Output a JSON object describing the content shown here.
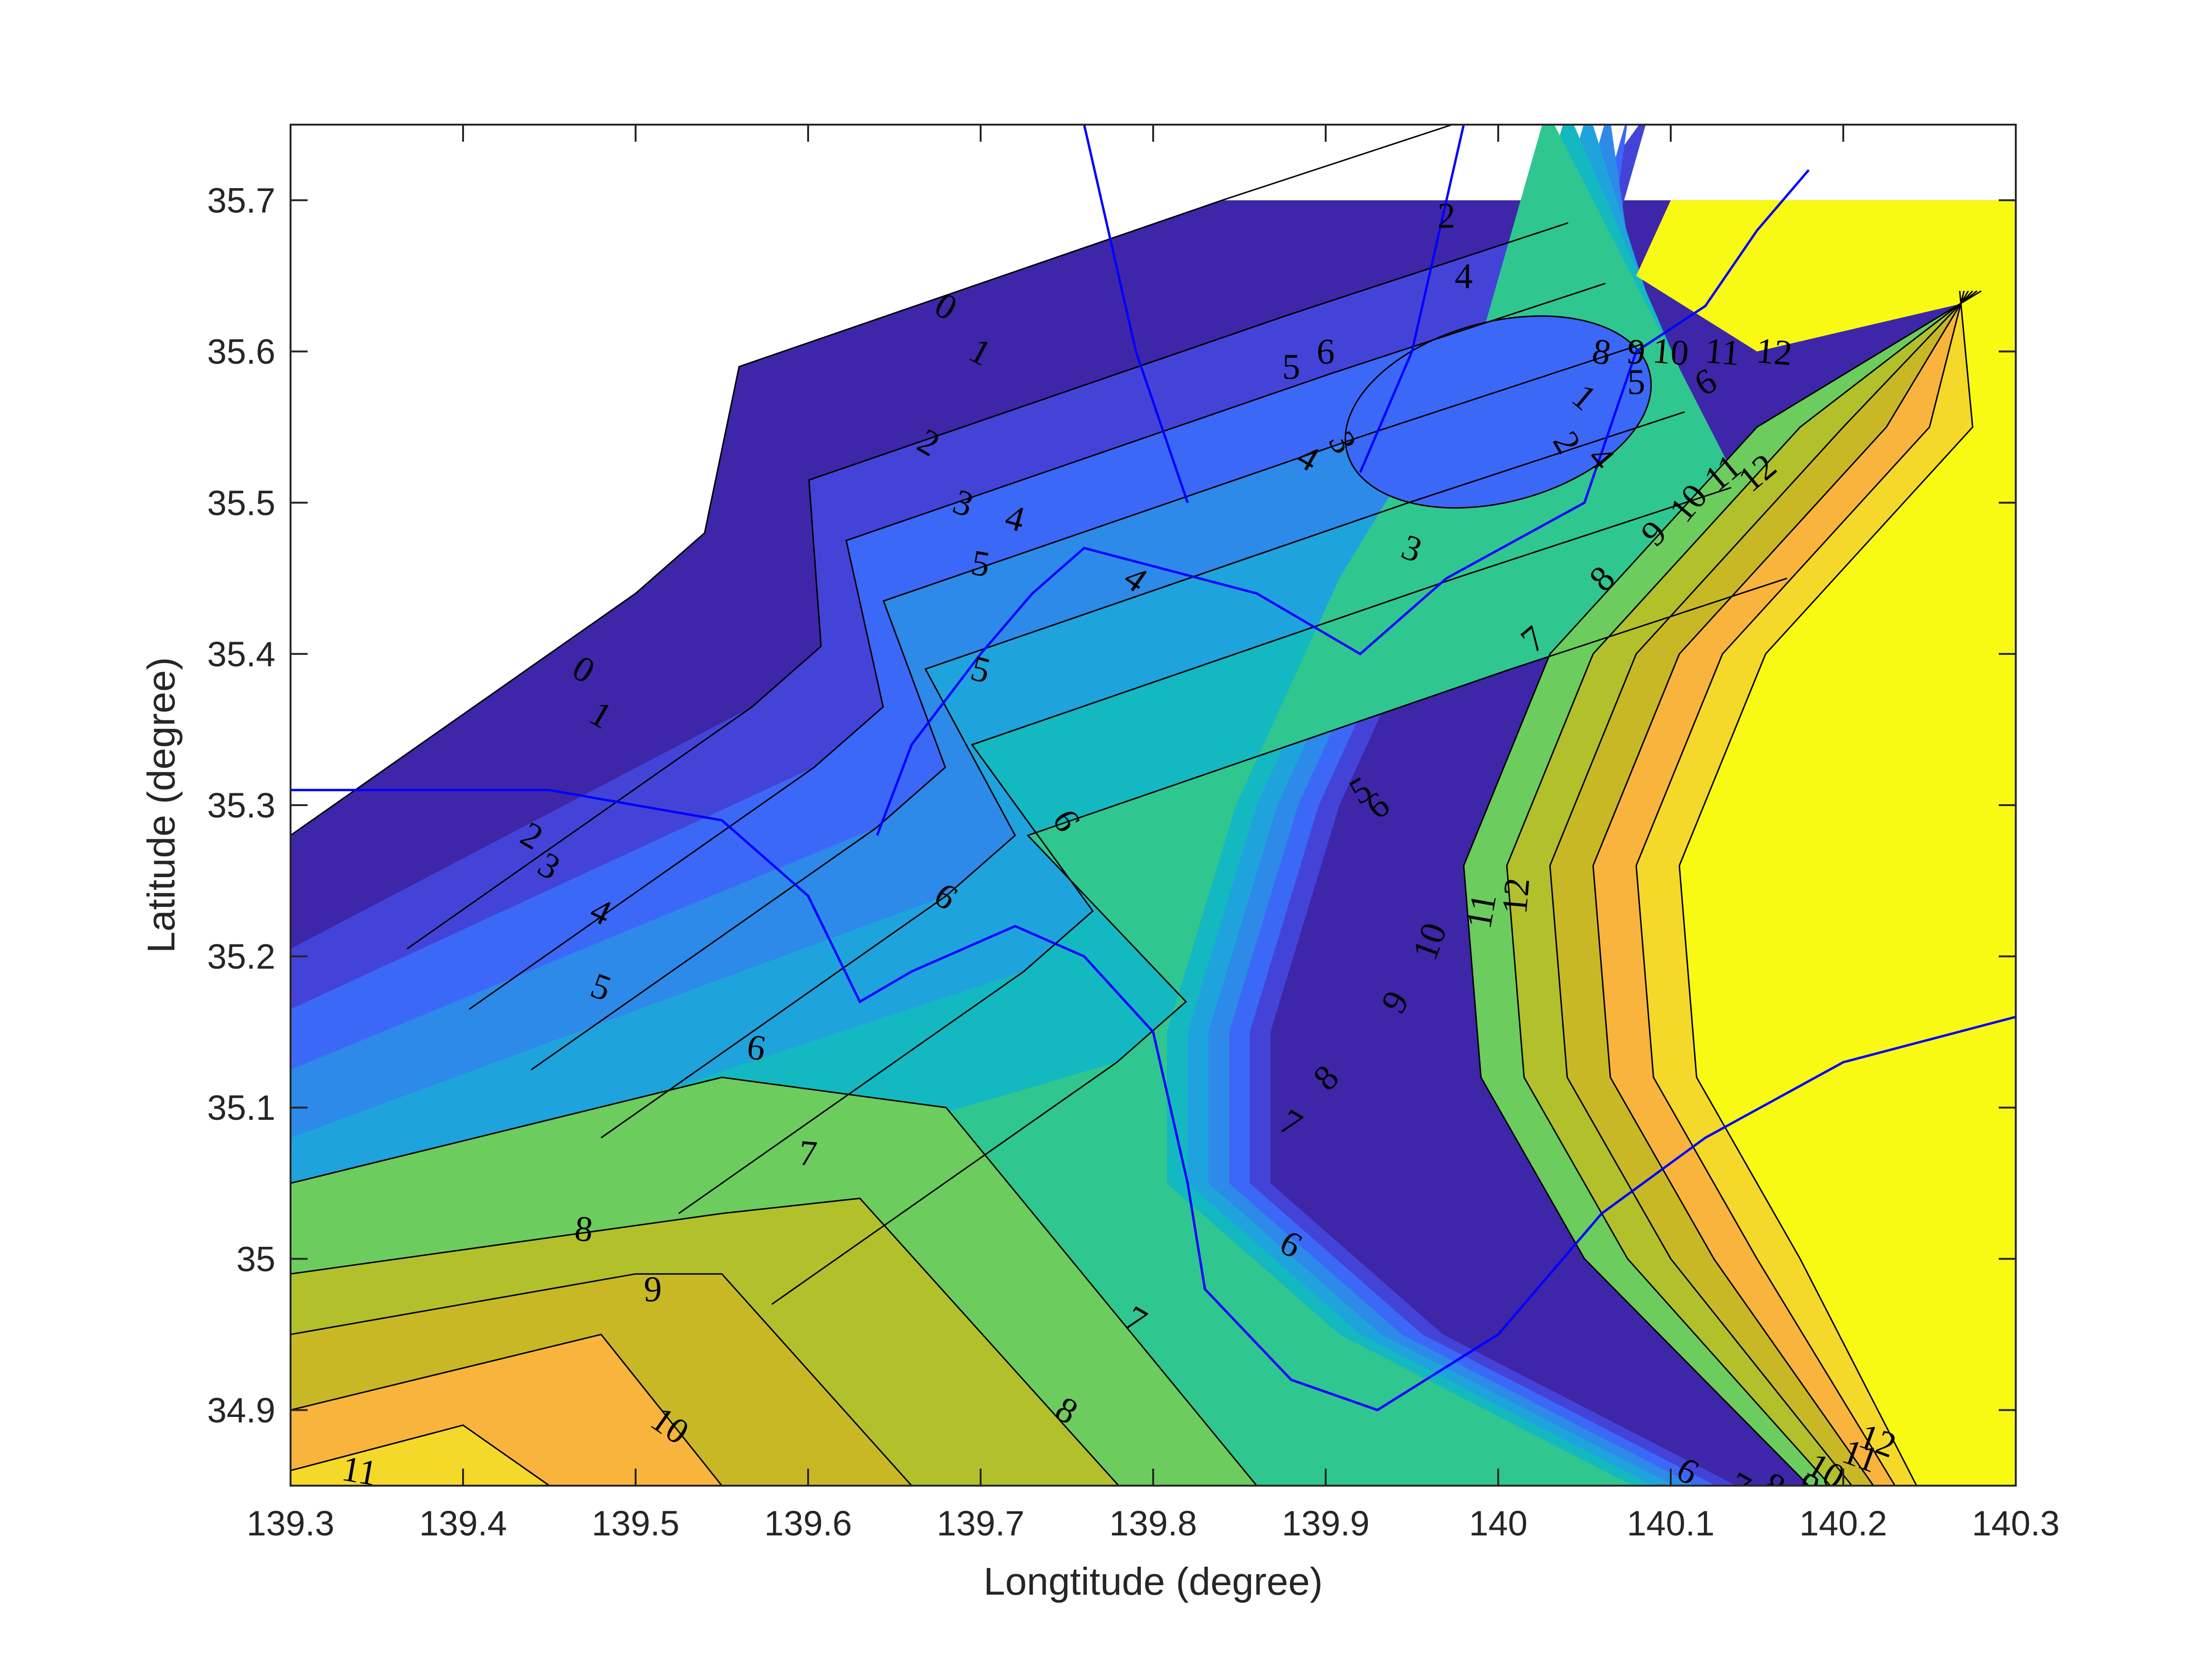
{
  "chart_data": {
    "type": "contour",
    "title": "",
    "xlabel": "Longtitude (degree)",
    "ylabel": "Latitude (degree)",
    "xlim": [
      139.3,
      140.3
    ],
    "ylim": [
      34.85,
      35.75
    ],
    "xticks": [
      139.3,
      139.4,
      139.5,
      139.6,
      139.7,
      139.8,
      139.9,
      140,
      140.1,
      140.2,
      140.3
    ],
    "xtick_labels": [
      "139.3",
      "139.4",
      "139.5",
      "139.6",
      "139.7",
      "139.8",
      "139.9",
      "140",
      "140.1",
      "140.2",
      "140.3"
    ],
    "yticks": [
      34.9,
      35,
      35.1,
      35.2,
      35.3,
      35.4,
      35.5,
      35.6,
      35.7
    ],
    "ytick_labels": [
      "34.9",
      "35",
      "35.1",
      "35.2",
      "35.3",
      "35.4",
      "35.5",
      "35.6",
      "35.7"
    ],
    "grid": false,
    "colormap": [
      "#3e26a8",
      "#4443d8",
      "#3c68f8",
      "#2d8ae8",
      "#1fa3dc",
      "#14b8c0",
      "#30c690",
      "#6ccc5e",
      "#b2c02c",
      "#c8b826",
      "#f8b43c",
      "#f4d82a",
      "#f9fa14"
    ],
    "coastline_color": "#0000ff",
    "levels": [
      0,
      1,
      2,
      3,
      4,
      5,
      6,
      7,
      8,
      9,
      10,
      11,
      12
    ],
    "contour_labels": [
      {
        "text": "0",
        "lon": 139.68,
        "lat": 35.63,
        "rot": 30
      },
      {
        "text": "1",
        "lon": 139.7,
        "lat": 35.6,
        "rot": 28
      },
      {
        "text": "2",
        "lon": 139.67,
        "lat": 35.54,
        "rot": 30
      },
      {
        "text": "3",
        "lon": 139.69,
        "lat": 35.5,
        "rot": 20
      },
      {
        "text": "4",
        "lon": 139.72,
        "lat": 35.49,
        "rot": 15
      },
      {
        "text": "5",
        "lon": 139.7,
        "lat": 35.46,
        "rot": 10
      },
      {
        "text": "5",
        "lon": 139.7,
        "lat": 35.39,
        "rot": 15
      },
      {
        "text": "5",
        "lon": 139.88,
        "lat": 35.59,
        "rot": 0
      },
      {
        "text": "6",
        "lon": 139.9,
        "lat": 35.6,
        "rot": 0
      },
      {
        "text": "4",
        "lon": 139.89,
        "lat": 35.53,
        "rot": 30
      },
      {
        "text": "3",
        "lon": 139.91,
        "lat": 35.54,
        "rot": 60
      },
      {
        "text": "4",
        "lon": 139.79,
        "lat": 35.45,
        "rot": 35
      },
      {
        "text": "3",
        "lon": 139.95,
        "lat": 35.47,
        "rot": 20
      },
      {
        "text": "2",
        "lon": 139.97,
        "lat": 35.69,
        "rot": 0
      },
      {
        "text": "4",
        "lon": 139.98,
        "lat": 35.65,
        "rot": 0
      },
      {
        "text": "1",
        "lon": 140.05,
        "lat": 35.57,
        "rot": 40
      },
      {
        "text": "2",
        "lon": 140.04,
        "lat": 35.54,
        "rot": 60
      },
      {
        "text": "4",
        "lon": 140.06,
        "lat": 35.53,
        "rot": 50
      },
      {
        "text": "7",
        "lon": 140.02,
        "lat": 35.41,
        "rot": -40
      },
      {
        "text": "8",
        "lon": 140.06,
        "lat": 35.45,
        "rot": -45
      },
      {
        "text": "9",
        "lon": 140.09,
        "lat": 35.48,
        "rot": -45
      },
      {
        "text": "10",
        "lon": 140.11,
        "lat": 35.5,
        "rot": -50
      },
      {
        "text": "11",
        "lon": 140.13,
        "lat": 35.52,
        "rot": -40
      },
      {
        "text": "12",
        "lon": 140.15,
        "lat": 35.52,
        "rot": -40
      },
      {
        "text": "5",
        "lon": 140.08,
        "lat": 35.58,
        "rot": 0
      },
      {
        "text": "6",
        "lon": 140.12,
        "lat": 35.58,
        "rot": -30
      },
      {
        "text": "8",
        "lon": 140.06,
        "lat": 35.6,
        "rot": 10
      },
      {
        "text": "9",
        "lon": 140.08,
        "lat": 35.6,
        "rot": 5
      },
      {
        "text": "10",
        "lon": 140.1,
        "lat": 35.6,
        "rot": 5
      },
      {
        "text": "11",
        "lon": 140.13,
        "lat": 35.6,
        "rot": 5
      },
      {
        "text": "12",
        "lon": 140.16,
        "lat": 35.6,
        "rot": 5
      },
      {
        "text": "0",
        "lon": 139.47,
        "lat": 35.39,
        "rot": 30
      },
      {
        "text": "1",
        "lon": 139.48,
        "lat": 35.36,
        "rot": 30
      },
      {
        "text": "2",
        "lon": 139.44,
        "lat": 35.28,
        "rot": 30
      },
      {
        "text": "3",
        "lon": 139.45,
        "lat": 35.26,
        "rot": 30
      },
      {
        "text": "4",
        "lon": 139.48,
        "lat": 35.23,
        "rot": 25
      },
      {
        "text": "5",
        "lon": 139.48,
        "lat": 35.18,
        "rot": 20
      },
      {
        "text": "6",
        "lon": 139.57,
        "lat": 35.14,
        "rot": 10
      },
      {
        "text": "7",
        "lon": 139.6,
        "lat": 35.07,
        "rot": 5
      },
      {
        "text": "8",
        "lon": 139.47,
        "lat": 35.02,
        "rot": 5
      },
      {
        "text": "9",
        "lon": 139.51,
        "lat": 34.98,
        "rot": 0
      },
      {
        "text": "10",
        "lon": 139.52,
        "lat": 34.89,
        "rot": 35
      },
      {
        "text": "11",
        "lon": 139.34,
        "lat": 34.86,
        "rot": 10
      },
      {
        "text": "6",
        "lon": 139.68,
        "lat": 35.24,
        "rot": 35
      },
      {
        "text": "6",
        "lon": 139.75,
        "lat": 35.29,
        "rot": 60
      },
      {
        "text": "5",
        "lon": 139.92,
        "lat": 35.31,
        "rot": -30
      },
      {
        "text": "6",
        "lon": 139.93,
        "lat": 35.3,
        "rot": -35
      },
      {
        "text": "7",
        "lon": 139.88,
        "lat": 35.09,
        "rot": 30
      },
      {
        "text": "8",
        "lon": 139.9,
        "lat": 35.12,
        "rot": -45
      },
      {
        "text": "9",
        "lon": 139.94,
        "lat": 35.17,
        "rot": -60
      },
      {
        "text": "10",
        "lon": 139.96,
        "lat": 35.21,
        "rot": -70
      },
      {
        "text": "11",
        "lon": 139.99,
        "lat": 35.23,
        "rot": -80
      },
      {
        "text": "12",
        "lon": 140.01,
        "lat": 35.24,
        "rot": -85
      },
      {
        "text": "6",
        "lon": 139.88,
        "lat": 35.01,
        "rot": 30
      },
      {
        "text": "7",
        "lon": 139.79,
        "lat": 34.96,
        "rot": 30
      },
      {
        "text": "8",
        "lon": 139.75,
        "lat": 34.9,
        "rot": 30
      },
      {
        "text": "6",
        "lon": 140.11,
        "lat": 34.86,
        "rot": 30
      },
      {
        "text": "7",
        "lon": 140.14,
        "lat": 34.85,
        "rot": 30
      },
      {
        "text": "8",
        "lon": 140.16,
        "lat": 34.85,
        "rot": 30
      },
      {
        "text": "9",
        "lon": 140.18,
        "lat": 34.85,
        "rot": 30
      },
      {
        "text": "10",
        "lon": 140.19,
        "lat": 34.86,
        "rot": 30
      },
      {
        "text": "11",
        "lon": 140.21,
        "lat": 34.87,
        "rot": 20
      },
      {
        "text": "12",
        "lon": 140.22,
        "lat": 34.88,
        "rot": 20
      }
    ]
  }
}
